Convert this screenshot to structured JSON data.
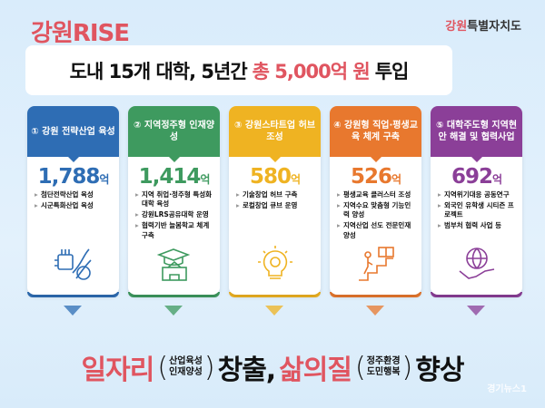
{
  "brand": "강원RISE",
  "org": {
    "prefix": "강원",
    "rest": "특별자치도"
  },
  "headline": {
    "pre": "도내 15개 대학, 5년간",
    "highlight": "총 5,000억 원",
    "post": "투입"
  },
  "cards": [
    {
      "title": "① 강원 전략산업 육성",
      "amount": "1,788",
      "unit": "억",
      "color": "#2e6db4",
      "items": [
        "첨단전략산업 육성",
        "시군특화산업 육성"
      ],
      "icon": "dna-chip-icon"
    },
    {
      "title": "② 지역정주형 인재양성",
      "amount": "1,414",
      "unit": "억",
      "color": "#3e9a5f",
      "items": [
        "지역 취업·정주형 특성화 대학 육성",
        "강원LRS공유대학 운영",
        "협력기반 늘봄학교 체계 구축"
      ],
      "icon": "graduation-school-icon"
    },
    {
      "title": "③ 강원스타트업 허브 조성",
      "amount": "580",
      "unit": "억",
      "color": "#efb322",
      "items": [
        "기술창업 허브 구축",
        "로컬창업 큐브 운영"
      ],
      "icon": "lightbulb-gear-icon"
    },
    {
      "title": "④ 강원형 직업·평생교육 체계 구축",
      "amount": "526",
      "unit": "억",
      "color": "#e8782e",
      "items": [
        "평생교육 클러스터 조성",
        "지역수요 맞춤형 기능인력 양성",
        "지역산업 선도 전문인재 양성"
      ],
      "icon": "stairs-book-icon"
    },
    {
      "title": "⑤ 대학주도형 지역현안 해결 및 협력사업",
      "amount": "692",
      "unit": "억",
      "color": "#8b3f98",
      "items": [
        "지역위기대응 공동연구",
        "외국인 유학생 시티즌 프로젝트",
        "범부처 협력 사업 등"
      ],
      "icon": "globe-handshake-icon"
    }
  ],
  "bottom": {
    "w1": "일자리",
    "p1a": "산업육성",
    "p1b": "인재양성",
    "w2": "창출,",
    "w3": "삶의질",
    "p2a": "정주환경",
    "p2b": "도민행복",
    "w4": "향상"
  },
  "watermark": "경기뉴스1"
}
